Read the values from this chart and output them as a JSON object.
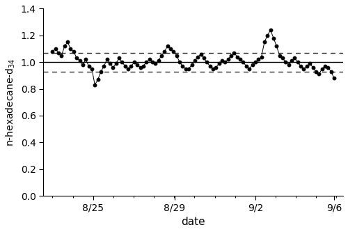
{
  "title": "",
  "xlabel": "date",
  "ylabel": "n-hexadecane-d$_{34}$",
  "ylim": [
    0.0,
    1.4
  ],
  "yticks": [
    0.0,
    0.2,
    0.4,
    0.6,
    0.8,
    1.0,
    1.2,
    1.4
  ],
  "average_line": 1.0,
  "std_upper": 1.07,
  "std_lower": 0.93,
  "xtick_labels": [
    "8/25",
    "8/29",
    "9/2",
    "9/6"
  ],
  "line_color": "#000000",
  "marker_color": "#000000",
  "avg_line_color": "#000000",
  "std_line_color": "#333333",
  "x_values": [
    0,
    1,
    2,
    3,
    4,
    5,
    6,
    7,
    8,
    9,
    10,
    11,
    12,
    13,
    14,
    15,
    16,
    17,
    18,
    19,
    20,
    21,
    22,
    23,
    24,
    25,
    26,
    27,
    28,
    29,
    30,
    31,
    32,
    33,
    34,
    35,
    36,
    37,
    38,
    39,
    40,
    41,
    42,
    43,
    44,
    45,
    46,
    47,
    48,
    49,
    50,
    51,
    52,
    53,
    54,
    55,
    56,
    57,
    58,
    59,
    60,
    61,
    62,
    63,
    64,
    65,
    66,
    67,
    68,
    69,
    70,
    71,
    72,
    73,
    74,
    75,
    76,
    77,
    78,
    79,
    80,
    81,
    82,
    83,
    84,
    85,
    86,
    87,
    88,
    89,
    90,
    91,
    92,
    93
  ],
  "y_values": [
    1.08,
    1.1,
    1.07,
    1.05,
    1.12,
    1.15,
    1.1,
    1.08,
    1.03,
    1.01,
    0.98,
    1.02,
    0.97,
    0.95,
    0.83,
    0.87,
    0.93,
    0.97,
    1.02,
    0.99,
    0.96,
    0.99,
    1.03,
    1.0,
    0.97,
    0.95,
    0.97,
    1.0,
    0.98,
    0.96,
    0.97,
    1.0,
    1.02,
    1.0,
    0.99,
    1.01,
    1.05,
    1.08,
    1.12,
    1.1,
    1.08,
    1.05,
    1.0,
    0.97,
    0.95,
    0.95,
    0.98,
    1.01,
    1.04,
    1.06,
    1.03,
    1.0,
    0.97,
    0.95,
    0.96,
    0.99,
    1.01,
    1.0,
    1.02,
    1.05,
    1.07,
    1.04,
    1.02,
    1.0,
    0.97,
    0.95,
    0.98,
    1.0,
    1.02,
    1.04,
    1.15,
    1.2,
    1.24,
    1.18,
    1.12,
    1.05,
    1.03,
    1.0,
    0.98,
    1.01,
    1.03,
    1.0,
    0.97,
    0.95,
    0.97,
    0.99,
    0.96,
    0.93,
    0.91,
    0.95,
    0.97,
    0.96,
    0.93,
    0.88
  ],
  "xlim": [
    -3,
    96
  ],
  "xtick_pos_8_25": 13.4,
  "xtick_pos_8_29": 40.3,
  "xtick_pos_9_2": 67.1,
  "xtick_pos_9_6": 93.0
}
